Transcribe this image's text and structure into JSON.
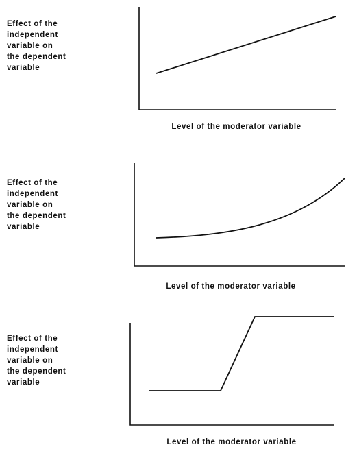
{
  "panels": [
    {
      "y_label_lines": [
        "Effect of the",
        "independent",
        "variable on",
        "the dependent",
        "variable"
      ],
      "x_label": "Level of the moderator variable"
    },
    {
      "y_label_lines": [
        "Effect of the",
        "independent",
        "variable on",
        "the dependent",
        "variable"
      ],
      "x_label": "Level of the moderator variable"
    },
    {
      "y_label_lines": [
        "Effect of the",
        "independent",
        "variable on",
        "the dependent",
        "variable"
      ],
      "x_label": "Level of the moderator variable"
    }
  ]
}
